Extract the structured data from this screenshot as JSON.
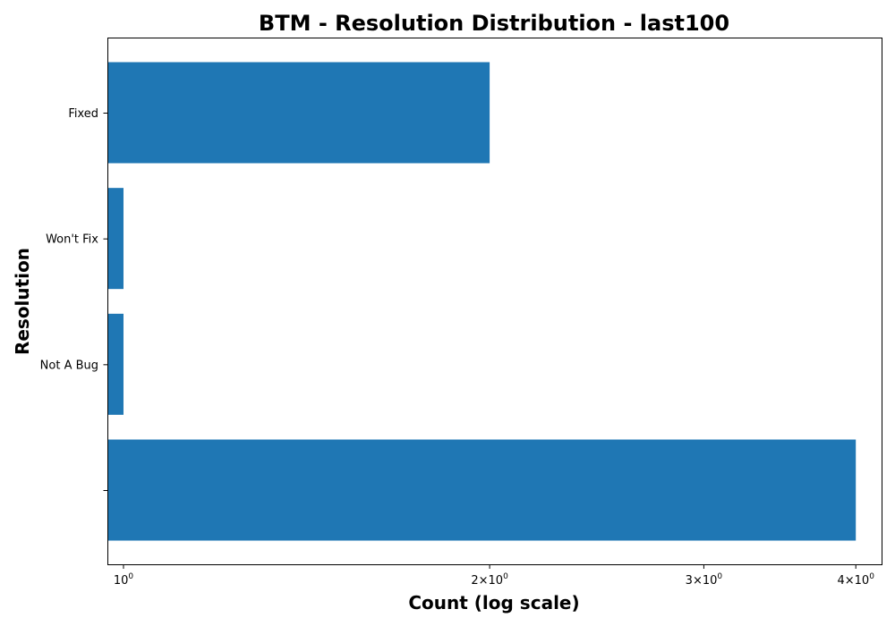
{
  "chart_data": {
    "type": "bar",
    "orientation": "horizontal",
    "title": "BTM - Resolution Distribution - last100",
    "xlabel": "Count (log scale)",
    "ylabel": "Resolution",
    "x_scale": "log",
    "xlim": [
      0.97,
      4.2
    ],
    "x_ticks": [
      {
        "value": 1,
        "base": "10",
        "exp": "0"
      },
      {
        "value": 2,
        "base": "2×10",
        "exp": "0"
      },
      {
        "value": 3,
        "base": "3×10",
        "exp": "0"
      },
      {
        "value": 4,
        "base": "4×10",
        "exp": "0"
      }
    ],
    "categories": [
      "",
      "Not A Bug",
      "Won't Fix",
      "Fixed"
    ],
    "values": [
      4,
      1,
      1,
      2
    ],
    "bar_color": "#1f77b4",
    "grid": false,
    "legend": "none"
  }
}
